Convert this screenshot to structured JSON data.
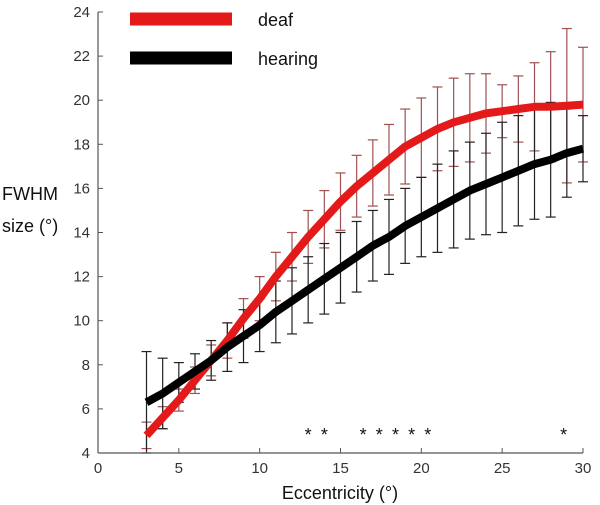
{
  "chart_data": {
    "type": "line",
    "title": "",
    "xlabel": "Eccentricity (°)",
    "ylabel_line1": "FWHM",
    "ylabel_line2": "size (°)",
    "xlim": [
      0,
      30
    ],
    "ylim": [
      4,
      24
    ],
    "xticks": [
      "0",
      "5",
      "10",
      "15",
      "20",
      "25",
      "30"
    ],
    "yticks": [
      "4",
      "6",
      "8",
      "10",
      "12",
      "14",
      "16",
      "18",
      "20",
      "22",
      "24"
    ],
    "grid": false,
    "legend_position": "top-left",
    "x": [
      3,
      4,
      5,
      6,
      7,
      8,
      9,
      10,
      11,
      12,
      13,
      14,
      15,
      16,
      17,
      18,
      19,
      20,
      21,
      22,
      23,
      24,
      25,
      26,
      27,
      28,
      29,
      30
    ],
    "series": [
      {
        "name": "deaf",
        "color": "#e41a1a",
        "errorbar_color": "#a05050",
        "values": [
          4.8,
          5.6,
          6.4,
          7.3,
          8.2,
          9.1,
          10.1,
          11.0,
          12.0,
          12.9,
          13.8,
          14.6,
          15.4,
          16.1,
          16.7,
          17.3,
          17.9,
          18.3,
          18.7,
          19.0,
          19.2,
          19.4,
          19.5,
          19.6,
          19.7,
          19.7,
          19.75,
          19.8
        ],
        "errors": [
          0.6,
          0.5,
          0.5,
          0.6,
          0.7,
          0.8,
          0.9,
          1.0,
          1.1,
          1.1,
          1.2,
          1.3,
          1.3,
          1.4,
          1.5,
          1.6,
          1.7,
          1.8,
          1.9,
          2.0,
          2.0,
          1.8,
          1.2,
          1.5,
          2.0,
          2.5,
          3.5,
          2.6
        ]
      },
      {
        "name": "hearing",
        "color": "#000000",
        "errorbar_color": "#222222",
        "values": [
          6.3,
          6.7,
          7.2,
          7.7,
          8.2,
          8.8,
          9.3,
          9.8,
          10.4,
          10.9,
          11.4,
          11.9,
          12.4,
          12.9,
          13.4,
          13.8,
          14.3,
          14.7,
          15.1,
          15.5,
          15.9,
          16.2,
          16.5,
          16.8,
          17.1,
          17.3,
          17.6,
          17.8
        ],
        "errors": [
          2.3,
          1.6,
          0.9,
          0.8,
          0.9,
          1.1,
          1.2,
          1.2,
          1.4,
          1.5,
          1.5,
          1.6,
          1.6,
          1.6,
          1.6,
          1.7,
          1.7,
          1.8,
          2.0,
          2.2,
          2.2,
          2.3,
          2.5,
          2.5,
          2.5,
          2.6,
          2.0,
          1.5
        ]
      }
    ],
    "significance": {
      "symbol": "*",
      "x": [
        13,
        14,
        16.4,
        17.4,
        18.4,
        19.4,
        20.4,
        28.8
      ]
    }
  }
}
